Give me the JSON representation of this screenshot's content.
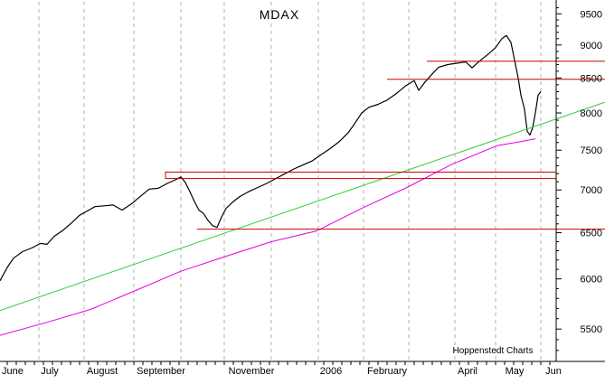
{
  "chart_data": {
    "type": "line",
    "title": "MDAX",
    "credit": "Hoppenstedt Charts",
    "y_scale": "log",
    "ylim": [
      5200,
      9700
    ],
    "y_ticks": [
      5500,
      6000,
      6500,
      7000,
      7500,
      8000,
      8500,
      9000,
      9500
    ],
    "y_tick_labels": [
      "5500",
      "6000",
      "6500",
      "7000",
      "7500",
      "8000",
      "8500",
      "9000",
      "9500"
    ],
    "x_labels": [
      "June",
      "July",
      "August",
      "September",
      "November",
      "2006",
      "February",
      "April",
      "May",
      "Jun"
    ],
    "grid": "vertical dashed",
    "series": [
      {
        "role": "index",
        "color": "#000000",
        "points": [
          [
            0,
            5980
          ],
          [
            8,
            6120
          ],
          [
            15,
            6220
          ],
          [
            25,
            6290
          ],
          [
            35,
            6330
          ],
          [
            45,
            6380
          ],
          [
            52,
            6370
          ],
          [
            60,
            6460
          ],
          [
            70,
            6530
          ],
          [
            80,
            6620
          ],
          [
            88,
            6700
          ],
          [
            95,
            6740
          ],
          [
            105,
            6800
          ],
          [
            115,
            6810
          ],
          [
            125,
            6820
          ],
          [
            135,
            6760
          ],
          [
            145,
            6830
          ],
          [
            155,
            6920
          ],
          [
            165,
            7010
          ],
          [
            175,
            7020
          ],
          [
            185,
            7080
          ],
          [
            195,
            7130
          ],
          [
            200,
            7160
          ],
          [
            205,
            7090
          ],
          [
            210,
            6980
          ],
          [
            215,
            6860
          ],
          [
            220,
            6760
          ],
          [
            225,
            6720
          ],
          [
            230,
            6640
          ],
          [
            235,
            6580
          ],
          [
            240,
            6560
          ],
          [
            245,
            6680
          ],
          [
            250,
            6780
          ],
          [
            258,
            6860
          ],
          [
            265,
            6920
          ],
          [
            275,
            6980
          ],
          [
            285,
            7030
          ],
          [
            295,
            7080
          ],
          [
            305,
            7140
          ],
          [
            315,
            7200
          ],
          [
            325,
            7260
          ],
          [
            335,
            7310
          ],
          [
            345,
            7360
          ],
          [
            355,
            7440
          ],
          [
            365,
            7520
          ],
          [
            375,
            7610
          ],
          [
            385,
            7730
          ],
          [
            392,
            7850
          ],
          [
            400,
            8000
          ],
          [
            408,
            8080
          ],
          [
            418,
            8120
          ],
          [
            428,
            8180
          ],
          [
            438,
            8270
          ],
          [
            448,
            8380
          ],
          [
            458,
            8460
          ],
          [
            463,
            8320
          ],
          [
            470,
            8440
          ],
          [
            478,
            8560
          ],
          [
            485,
            8660
          ],
          [
            495,
            8700
          ],
          [
            505,
            8720
          ],
          [
            515,
            8740
          ],
          [
            522,
            8650
          ],
          [
            530,
            8750
          ],
          [
            540,
            8860
          ],
          [
            548,
            8960
          ],
          [
            555,
            9100
          ],
          [
            560,
            9150
          ],
          [
            565,
            9040
          ],
          [
            570,
            8700
          ],
          [
            573,
            8500
          ],
          [
            576,
            8250
          ],
          [
            580,
            8050
          ],
          [
            583,
            7750
          ],
          [
            586,
            7700
          ],
          [
            589,
            7800
          ],
          [
            592,
            8000
          ],
          [
            595,
            8250
          ],
          [
            598,
            8300
          ]
        ]
      },
      {
        "role": "trend line",
        "color": "#33cc33",
        "points": [
          [
            0,
            5680
          ],
          [
            669,
            8150
          ]
        ]
      },
      {
        "role": "moving average",
        "color": "#e000e0",
        "points": [
          [
            0,
            5440
          ],
          [
            50,
            5560
          ],
          [
            100,
            5690
          ],
          [
            150,
            5880
          ],
          [
            200,
            6080
          ],
          [
            250,
            6240
          ],
          [
            300,
            6400
          ],
          [
            350,
            6520
          ],
          [
            400,
            6780
          ],
          [
            450,
            7030
          ],
          [
            500,
            7320
          ],
          [
            550,
            7560
          ],
          [
            575,
            7610
          ],
          [
            592,
            7650
          ]
        ]
      }
    ],
    "levels": [
      {
        "role": "horizontal resistance",
        "color": "#cc0000",
        "value": 8750,
        "x_from": 472,
        "x_to": 669
      },
      {
        "role": "horizontal resistance",
        "color": "#cc0000",
        "value": 8480,
        "x_from": 428,
        "x_to": 669
      },
      {
        "role": "horizontal support",
        "color": "#cc0000",
        "value": 6540,
        "x_from": 218,
        "x_to": 669
      }
    ],
    "bands": [
      {
        "role": "support band",
        "color": "#cc0000",
        "value_top": 7220,
        "value_bottom": 7140,
        "x_from": 183,
        "x_to": 615
      }
    ]
  }
}
